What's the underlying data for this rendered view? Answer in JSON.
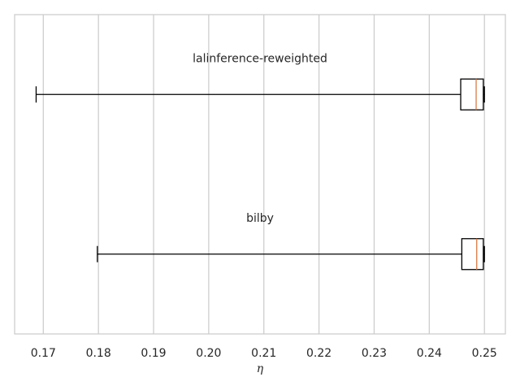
{
  "chart_data": {
    "type": "boxplot",
    "orientation": "horizontal",
    "xlabel": "η",
    "xlim": [
      0.1648,
      0.2538
    ],
    "xticks": [
      "0.17",
      "0.18",
      "0.19",
      "0.20",
      "0.21",
      "0.22",
      "0.23",
      "0.24",
      "0.25"
    ],
    "grid": true,
    "series": [
      {
        "name": "lalinference-reweighted",
        "whisker_low": 0.1687,
        "q1": 0.2457,
        "median": 0.2485,
        "q3": 0.2498,
        "whisker_high": 0.25
      },
      {
        "name": "bilby",
        "whisker_low": 0.1798,
        "q1": 0.2459,
        "median": 0.2486,
        "q3": 0.2498,
        "whisker_high": 0.25
      }
    ],
    "colors": {
      "grid": "#cccccc",
      "axes": "#cccccc",
      "box": "#000000",
      "median": "#dd8452"
    }
  }
}
